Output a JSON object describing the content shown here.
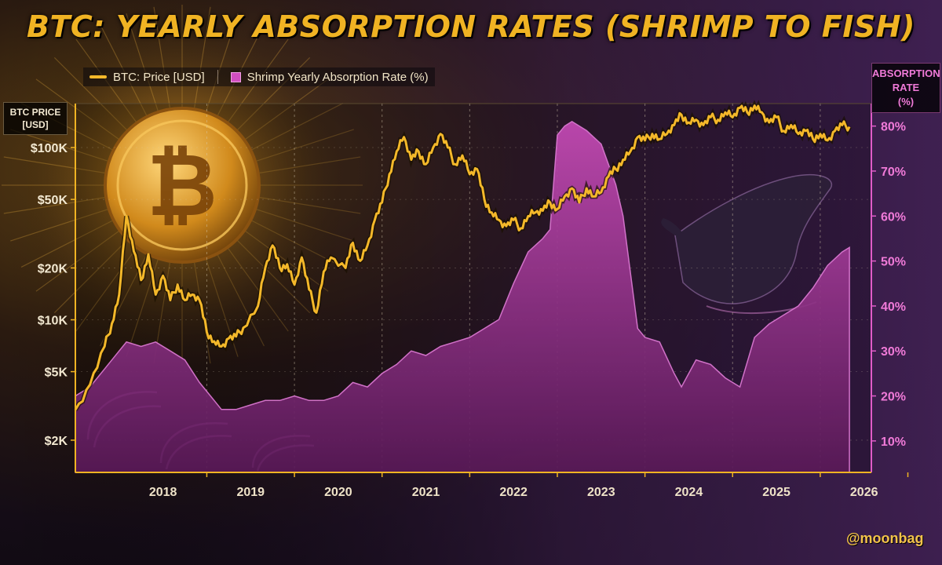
{
  "title": "BTC: YEARLY ABSORPTION RATES (SHRIMP TO FISH)",
  "watermark": "@moonbag",
  "colors": {
    "price": "#f4b82a",
    "absorption": "#c23fb0",
    "left_axis": "#f0b323",
    "right_axis": "#e05cc8"
  },
  "icons": [
    "bitcoin-coin-icon",
    "whale-illustration",
    "shrimp-illustration"
  ],
  "chart_data": {
    "type": "line",
    "legend": {
      "placement": "top-left",
      "entries": [
        "BTC: Price [USD]",
        "Shrimp Yearly Absorption Rate (%)"
      ]
    },
    "x_ticks": [
      "2018",
      "2019",
      "2020",
      "2021",
      "2022",
      "2023",
      "2024",
      "2025",
      "2026"
    ],
    "xlim": [
      "2017-07",
      "2026-08"
    ],
    "y_left": {
      "label": "BTC PRICE [USD]",
      "scale": "log",
      "ticks": [
        2000,
        5000,
        10000,
        20000,
        50000,
        100000
      ],
      "tick_labels": [
        "$2K",
        "$5K",
        "$10K",
        "$20K",
        "$50K",
        "$100K"
      ],
      "ylim": [
        1300,
        180000
      ]
    },
    "y_right": {
      "label": "ABSORPTION RATE (%)",
      "ticks": [
        10,
        20,
        30,
        40,
        50,
        60,
        70,
        80
      ],
      "tick_labels": [
        "10%",
        "20%",
        "30%",
        "40%",
        "50%",
        "60%",
        "70%",
        "80%"
      ],
      "ylim": [
        3,
        85
      ]
    },
    "series": [
      {
        "name": "BTC: Price [USD]",
        "axis": "left",
        "type": "line",
        "points": [
          [
            "2017-07",
            3000
          ],
          [
            "2017-09",
            4200
          ],
          [
            "2017-11",
            7000
          ],
          [
            "2017-12",
            9500
          ],
          [
            "2018-01",
            14000
          ],
          [
            "2018-02",
            40000
          ],
          [
            "2018-03",
            25000
          ],
          [
            "2018-04",
            17000
          ],
          [
            "2018-05",
            24000
          ],
          [
            "2018-06",
            14000
          ],
          [
            "2018-07",
            18000
          ],
          [
            "2018-08",
            13000
          ],
          [
            "2018-09",
            16000
          ],
          [
            "2018-10",
            13000
          ],
          [
            "2018-11",
            14000
          ],
          [
            "2018-12",
            13000
          ],
          [
            "2019-01",
            8500
          ],
          [
            "2019-02",
            7500
          ],
          [
            "2019-03",
            7000
          ],
          [
            "2019-04",
            7800
          ],
          [
            "2019-05",
            8000
          ],
          [
            "2019-06",
            9000
          ],
          [
            "2019-08",
            12000
          ],
          [
            "2019-09",
            20000
          ],
          [
            "2019-10",
            27000
          ],
          [
            "2019-11",
            20000
          ],
          [
            "2019-12",
            21000
          ],
          [
            "2020-01",
            16000
          ],
          [
            "2020-02",
            23000
          ],
          [
            "2020-03",
            15000
          ],
          [
            "2020-04",
            11000
          ],
          [
            "2020-05",
            19000
          ],
          [
            "2020-06",
            23000
          ],
          [
            "2020-08",
            20000
          ],
          [
            "2020-09",
            28000
          ],
          [
            "2020-10",
            22000
          ],
          [
            "2020-11",
            27000
          ],
          [
            "2020-12",
            38000
          ],
          [
            "2021-01",
            48000
          ],
          [
            "2021-02",
            70000
          ],
          [
            "2021-03",
            95000
          ],
          [
            "2021-04",
            115000
          ],
          [
            "2021-05",
            85000
          ],
          [
            "2021-06",
            95000
          ],
          [
            "2021-07",
            80000
          ],
          [
            "2021-08",
            100000
          ],
          [
            "2021-09",
            120000
          ],
          [
            "2021-10",
            100000
          ],
          [
            "2021-11",
            80000
          ],
          [
            "2021-12",
            90000
          ],
          [
            "2022-01",
            70000
          ],
          [
            "2022-02",
            75000
          ],
          [
            "2022-03",
            50000
          ],
          [
            "2022-04",
            42000
          ],
          [
            "2022-05",
            38000
          ],
          [
            "2022-06",
            35000
          ],
          [
            "2022-07",
            38000
          ],
          [
            "2022-08",
            34000
          ],
          [
            "2022-09",
            40000
          ],
          [
            "2022-10",
            42000
          ],
          [
            "2022-11",
            43000
          ],
          [
            "2022-12",
            48000
          ],
          [
            "2023-01",
            44000
          ],
          [
            "2023-02",
            52000
          ],
          [
            "2023-03",
            58000
          ],
          [
            "2023-04",
            48000
          ],
          [
            "2023-05",
            58000
          ],
          [
            "2023-06",
            52000
          ],
          [
            "2023-07",
            55000
          ],
          [
            "2023-08",
            68000
          ],
          [
            "2023-09",
            75000
          ],
          [
            "2023-10",
            85000
          ],
          [
            "2023-11",
            95000
          ],
          [
            "2023-12",
            115000
          ],
          [
            "2024-01",
            110000
          ],
          [
            "2024-02",
            120000
          ],
          [
            "2024-03",
            112000
          ],
          [
            "2024-04",
            120000
          ],
          [
            "2024-05",
            135000
          ],
          [
            "2024-06",
            155000
          ],
          [
            "2024-07",
            140000
          ],
          [
            "2024-08",
            145000
          ],
          [
            "2024-09",
            135000
          ],
          [
            "2024-10",
            150000
          ],
          [
            "2024-11",
            145000
          ],
          [
            "2024-12",
            160000
          ],
          [
            "2025-01",
            150000
          ],
          [
            "2025-02",
            170000
          ],
          [
            "2025-03",
            160000
          ],
          [
            "2025-04",
            175000
          ],
          [
            "2025-05",
            160000
          ],
          [
            "2025-06",
            140000
          ],
          [
            "2025-07",
            150000
          ],
          [
            "2025-08",
            125000
          ],
          [
            "2025-09",
            135000
          ],
          [
            "2025-10",
            120000
          ],
          [
            "2025-11",
            125000
          ],
          [
            "2025-12",
            112000
          ],
          [
            "2026-01",
            120000
          ],
          [
            "2026-02",
            110000
          ],
          [
            "2026-03",
            125000
          ],
          [
            "2026-04",
            135000
          ],
          [
            "2026-05",
            132000
          ]
        ]
      },
      {
        "name": "Shrimp Yearly Absorption Rate (%)",
        "axis": "right",
        "type": "area",
        "points": [
          [
            "2017-07",
            20
          ],
          [
            "2017-09",
            22
          ],
          [
            "2017-11",
            26
          ],
          [
            "2018-01",
            30
          ],
          [
            "2018-02",
            32
          ],
          [
            "2018-04",
            31
          ],
          [
            "2018-06",
            32
          ],
          [
            "2018-08",
            30
          ],
          [
            "2018-10",
            28
          ],
          [
            "2018-12",
            23
          ],
          [
            "2019-02",
            19
          ],
          [
            "2019-03",
            17
          ],
          [
            "2019-05",
            17
          ],
          [
            "2019-07",
            18
          ],
          [
            "2019-09",
            19
          ],
          [
            "2019-11",
            19
          ],
          [
            "2020-01",
            20
          ],
          [
            "2020-03",
            19
          ],
          [
            "2020-05",
            19
          ],
          [
            "2020-07",
            20
          ],
          [
            "2020-09",
            23
          ],
          [
            "2020-11",
            22
          ],
          [
            "2021-01",
            25
          ],
          [
            "2021-03",
            27
          ],
          [
            "2021-05",
            30
          ],
          [
            "2021-07",
            29
          ],
          [
            "2021-09",
            31
          ],
          [
            "2021-11",
            32
          ],
          [
            "2022-01",
            33
          ],
          [
            "2022-03",
            35
          ],
          [
            "2022-05",
            37
          ],
          [
            "2022-07",
            45
          ],
          [
            "2022-09",
            52
          ],
          [
            "2022-11",
            55
          ],
          [
            "2022-12",
            57
          ],
          [
            "2023-01",
            78
          ],
          [
            "2023-02",
            80
          ],
          [
            "2023-03",
            81
          ],
          [
            "2023-05",
            79
          ],
          [
            "2023-07",
            76
          ],
          [
            "2023-09",
            67
          ],
          [
            "2023-10",
            60
          ],
          [
            "2023-12",
            35
          ],
          [
            "2024-01",
            33
          ],
          [
            "2024-03",
            32
          ],
          [
            "2024-05",
            25
          ],
          [
            "2024-06",
            22
          ],
          [
            "2024-08",
            28
          ],
          [
            "2024-10",
            27
          ],
          [
            "2024-12",
            24
          ],
          [
            "2025-02",
            22
          ],
          [
            "2025-04",
            33
          ],
          [
            "2025-06",
            36
          ],
          [
            "2025-08",
            38
          ],
          [
            "2025-10",
            40
          ],
          [
            "2025-12",
            44
          ],
          [
            "2026-02",
            49
          ],
          [
            "2026-04",
            52
          ],
          [
            "2026-05",
            53
          ]
        ]
      }
    ]
  }
}
